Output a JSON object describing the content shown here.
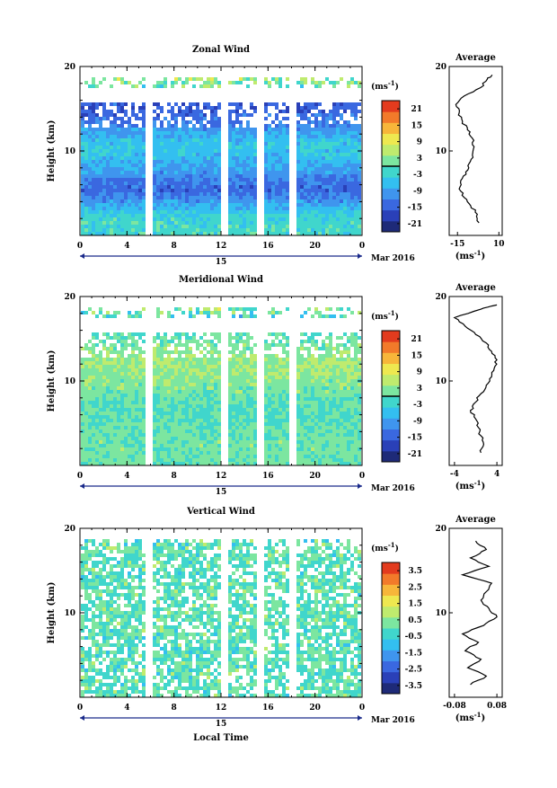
{
  "chart_data": [
    {
      "type": "heatmap",
      "title": "Zonal Wind",
      "ylabel": "Height (km)",
      "y_ticks": [
        "20",
        "10"
      ],
      "ylim": [
        0,
        20
      ],
      "x_ticks": [
        "0",
        "4",
        "8",
        "12",
        "16",
        "20",
        "0"
      ],
      "xlim": [
        0,
        24
      ],
      "date_label": "15",
      "month_label": "Mar 2016",
      "colorbar": {
        "unit": "(ms",
        "unit_exp": "-1",
        "tick_labels": [
          "21",
          "15",
          "9",
          "3",
          "-3",
          "-9",
          "-15",
          "-21"
        ],
        "range": [
          -24,
          24
        ]
      },
      "missing_time_bands": [
        [
          5.4,
          5.9
        ],
        [
          11.9,
          12.4
        ],
        [
          14.9,
          15.4
        ],
        [
          17.7,
          18.2
        ]
      ],
      "data_top_km": 16,
      "average": {
        "title": "Average",
        "xlabel": "(ms",
        "xlabel_exp": "-1",
        "x_ticks": [
          "-15",
          "10"
        ],
        "xlim": [
          -20,
          12
        ],
        "y_ticks": [
          "20",
          "10"
        ],
        "profile": {
          "height_km": [
            1.5,
            2.5,
            3.5,
            4.5,
            5.5,
            6.5,
            7.5,
            8.5,
            9.5,
            10.5,
            11.5,
            12.5,
            13.5,
            14.5,
            15.5,
            16.5,
            17.5,
            18.5,
            19.0
          ],
          "wind": [
            -2,
            -3,
            -7,
            -11,
            -14,
            -13,
            -10,
            -8,
            -6,
            -5,
            -6,
            -9,
            -12,
            -14,
            -16,
            -11,
            -1,
            3,
            6
          ]
        }
      }
    },
    {
      "type": "heatmap",
      "title": "Meridional Wind",
      "ylabel": "Height (km)",
      "y_ticks": [
        "20",
        "10"
      ],
      "ylim": [
        0,
        20
      ],
      "x_ticks": [
        "0",
        "4",
        "8",
        "12",
        "16",
        "20",
        "0"
      ],
      "xlim": [
        0,
        24
      ],
      "date_label": "15",
      "month_label": "Mar 2016",
      "colorbar": {
        "unit": "(ms",
        "unit_exp": "-1",
        "tick_labels": [
          "21",
          "15",
          "9",
          "3",
          "-3",
          "-9",
          "-15",
          "-21"
        ],
        "range": [
          -24,
          24
        ]
      },
      "missing_time_bands": [
        [
          5.4,
          5.9
        ],
        [
          11.9,
          12.4
        ],
        [
          14.9,
          15.4
        ],
        [
          17.7,
          18.2
        ]
      ],
      "data_top_km": 16,
      "average": {
        "title": "Average",
        "xlabel": "(ms",
        "xlabel_exp": "-1",
        "x_ticks": [
          "-4",
          "4"
        ],
        "xlim": [
          -5,
          5
        ],
        "y_ticks": [
          "20",
          "10"
        ],
        "profile": {
          "height_km": [
            1.5,
            2.5,
            3.5,
            4.5,
            5.5,
            6.5,
            7.5,
            8.5,
            9.5,
            10.5,
            11.5,
            12.5,
            13.5,
            14.5,
            15.5,
            16.5,
            17.5,
            18.5,
            19.0
          ],
          "wind": [
            1,
            1.5,
            1,
            0.5,
            0,
            -1,
            0,
            1,
            2,
            3,
            3.5,
            4,
            3,
            2,
            0,
            -2,
            -4,
            1,
            4
          ]
        }
      }
    },
    {
      "type": "heatmap",
      "title": "Vertical Wind",
      "ylabel": "Height (km)",
      "y_ticks": [
        "20",
        "10"
      ],
      "ylim": [
        0,
        20
      ],
      "x_ticks": [
        "0",
        "4",
        "8",
        "12",
        "16",
        "20",
        "0"
      ],
      "xlim": [
        0,
        24
      ],
      "xlabel": "Local Time",
      "date_label": "15",
      "month_label": "Mar 2016",
      "colorbar": {
        "unit": "(ms",
        "unit_exp": "-1",
        "tick_labels": [
          "3.5",
          "2.5",
          "1.5",
          "0.5",
          "-0.5",
          "-1.5",
          "-2.5",
          "-3.5"
        ],
        "range": [
          -4,
          4
        ]
      },
      "missing_time_bands": [
        [
          5.4,
          5.9
        ],
        [
          11.9,
          12.4
        ],
        [
          14.9,
          15.4
        ],
        [
          17.7,
          18.2
        ]
      ],
      "data_top_km": 18,
      "average": {
        "title": "Average",
        "xlabel": "(ms",
        "xlabel_exp": "-1",
        "x_ticks": [
          "-0.08",
          "0.08"
        ],
        "xlim": [
          -0.1,
          0.1
        ],
        "y_ticks": [
          "20",
          "10"
        ],
        "profile": {
          "height_km": [
            1.5,
            2.5,
            3.5,
            4.5,
            5.5,
            6.5,
            7.5,
            8.5,
            9.5,
            10.5,
            11.5,
            12.5,
            13.5,
            14.5,
            15.5,
            16.5,
            17.5,
            18.5
          ],
          "wind": [
            -0.02,
            0.04,
            -0.03,
            0.02,
            -0.04,
            0.01,
            -0.05,
            0.03,
            0.08,
            0.05,
            0.02,
            0.04,
            0.06,
            -0.05,
            0.05,
            -0.02,
            0.04,
            0.0
          ]
        }
      }
    }
  ]
}
